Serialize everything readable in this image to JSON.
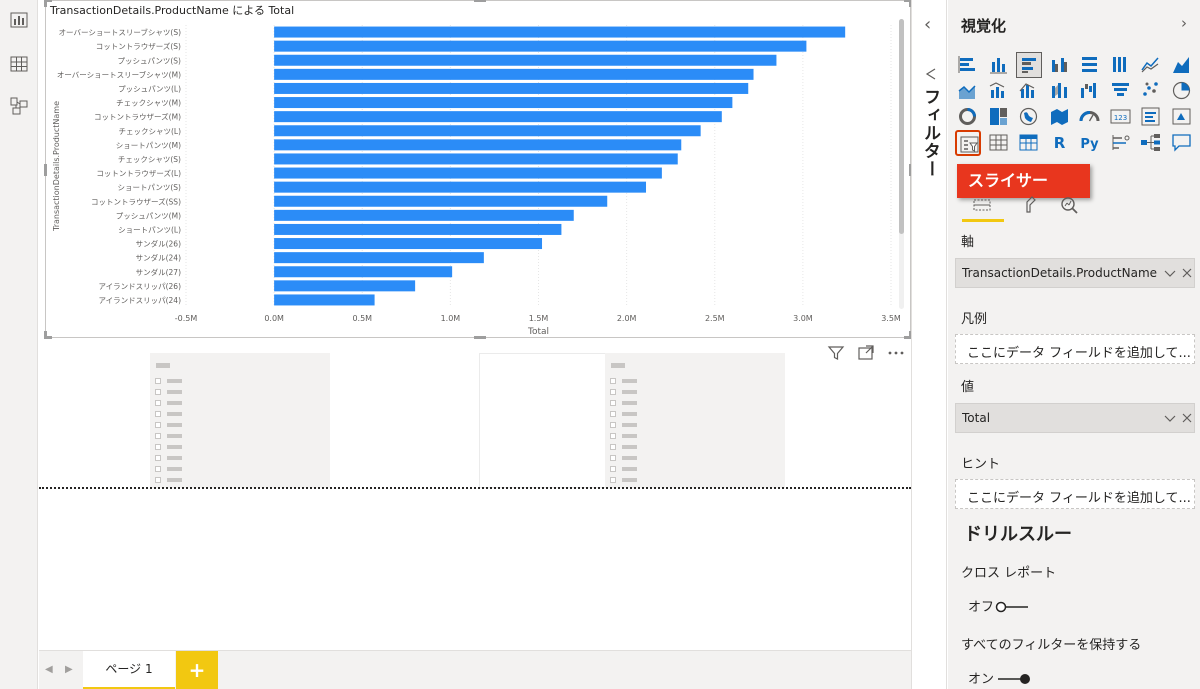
{
  "left_rail": {
    "icons": [
      "report-view-icon",
      "data-view-icon",
      "model-view-icon"
    ]
  },
  "chart_title": "TransactionDetails.ProductName による Total",
  "chart_data": {
    "type": "bar",
    "orientation": "horizontal",
    "title": "TransactionDetails.ProductName による Total",
    "ylabel": "TransactionDetails.ProductName",
    "xlabel": "Total",
    "xlim": [
      -500000,
      3500000
    ],
    "x_ticks": [
      "-0.5M",
      "0.0M",
      "0.5M",
      "1.0M",
      "1.5M",
      "2.0M",
      "2.5M",
      "3.0M",
      "3.5M"
    ],
    "categories": [
      "オーバーショートスリーブシャツ(S)",
      "コットントラウザーズ(S)",
      "プッシュパンツ(S)",
      "オーバーショートスリーブシャツ(M)",
      "プッシュパンツ(L)",
      "チェックシャツ(M)",
      "コットントラウザーズ(M)",
      "チェックシャツ(L)",
      "ショートパンツ(M)",
      "チェックシャツ(S)",
      "コットントラウザーズ(L)",
      "ショートパンツ(S)",
      "コットントラウザーズ(SS)",
      "プッシュパンツ(M)",
      "ショートパンツ(L)",
      "サンダル(26)",
      "サンダル(24)",
      "サンダル(27)",
      "アイランドスリッパ(26)",
      "アイランドスリッパ(24)"
    ],
    "values": [
      3240000,
      3020000,
      2850000,
      2720000,
      2690000,
      2600000,
      2540000,
      2420000,
      2310000,
      2290000,
      2200000,
      2110000,
      1890000,
      1700000,
      1630000,
      1520000,
      1190000,
      1010000,
      800000,
      570000
    ],
    "color": "#2b8cf7",
    "grid": true
  },
  "visual_header_icons": [
    "filter-icon",
    "focus-mode-icon",
    "more-options-icon"
  ],
  "tabs": {
    "prev": "◀",
    "next": "▶",
    "page_label": "ページ 1",
    "add_label": "+"
  },
  "filters": {
    "label": "フィルター"
  },
  "viz": {
    "title": "視覚化",
    "collapse_glyph": "‹",
    "expand_glyph": "›",
    "tooltip": "スライサー",
    "gallery_icons": [
      "stacked-bar-icon",
      "stacked-column-icon",
      "clustered-bar-icon",
      "clustered-column-icon",
      "100-percent-bar-icon",
      "100-percent-column-icon",
      "line-chart-icon",
      "area-chart-icon",
      "stacked-area-icon",
      "line-clustered-column-icon",
      "line-stacked-column-icon",
      "ribbon-chart-icon",
      "waterfall-icon",
      "funnel-icon",
      "scatter-icon",
      "pie-icon",
      "donut-icon",
      "treemap-icon",
      "map-icon",
      "filled-map-icon",
      "gauge-icon",
      "card-icon",
      "multi-row-card-icon",
      "kpi-icon",
      "slicer-icon",
      "table-icon",
      "matrix-icon",
      "r-visual-icon",
      "python-visual-icon",
      "key-influencers-icon",
      "decomposition-tree-icon",
      "qa-icon"
    ],
    "r_glyph": "R",
    "py_glyph": "Py",
    "axis_label": "軸",
    "axis_value": "TransactionDetails.ProductName",
    "legend_label": "凡例",
    "legend_placeholder": "ここにデータ フィールドを追加して...",
    "values_label": "値",
    "values_value": "Total",
    "tooltips_label": "ヒント",
    "tooltips_placeholder": "ここにデータ フィールドを追加して...",
    "drillthrough_title": "ドリルスルー",
    "cross_report_label": "クロス レポート",
    "cross_report_state": "オフ",
    "keep_filters_label": "すべてのフィルターを保持する",
    "keep_filters_state": "オン"
  }
}
